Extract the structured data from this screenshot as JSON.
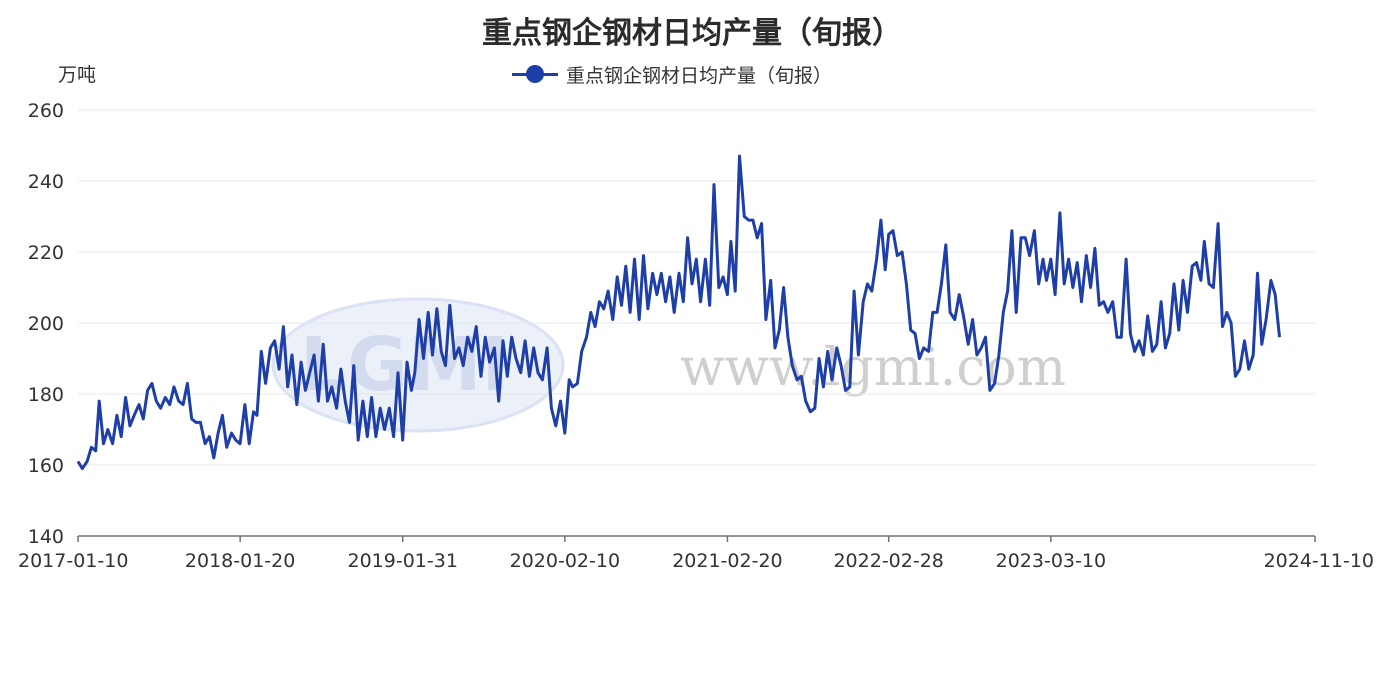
{
  "chart_data": {
    "type": "line",
    "title": "重点钢企钢材日均产量（旬报）",
    "ylabel": "万吨",
    "ylim": [
      140,
      260
    ],
    "yticks": [
      140,
      160,
      180,
      200,
      220,
      240,
      260
    ],
    "xticks": [
      "2017-01-10",
      "2018-01-20",
      "2019-01-31",
      "2020-02-10",
      "2021-02-20",
      "2022-02-28",
      "2023-03-10",
      "2024-11-10"
    ],
    "x_range": [
      "2017-01-10",
      "2024-11-10"
    ],
    "legend_position": "top-center",
    "grid": "horizontal",
    "series": [
      {
        "name": "重点钢企钢材日均产量（旬报）",
        "color": "#1f3fa8",
        "points": [
          [
            "2017-01-10",
            161
          ],
          [
            "2017-01-20",
            159
          ],
          [
            "2017-01-31",
            161
          ],
          [
            "2017-02-10",
            165
          ],
          [
            "2017-02-20",
            164
          ],
          [
            "2017-02-28",
            178
          ],
          [
            "2017-03-10",
            166
          ],
          [
            "2017-03-20",
            170
          ],
          [
            "2017-03-31",
            166
          ],
          [
            "2017-04-10",
            174
          ],
          [
            "2017-04-20",
            168
          ],
          [
            "2017-04-30",
            179
          ],
          [
            "2017-05-10",
            171
          ],
          [
            "2017-05-20",
            174
          ],
          [
            "2017-05-31",
            177
          ],
          [
            "2017-06-10",
            173
          ],
          [
            "2017-06-20",
            181
          ],
          [
            "2017-06-30",
            183
          ],
          [
            "2017-07-10",
            178
          ],
          [
            "2017-07-20",
            176
          ],
          [
            "2017-07-31",
            179
          ],
          [
            "2017-08-10",
            177
          ],
          [
            "2017-08-20",
            182
          ],
          [
            "2017-08-31",
            178
          ],
          [
            "2017-09-10",
            177
          ],
          [
            "2017-09-20",
            183
          ],
          [
            "2017-09-30",
            173
          ],
          [
            "2017-10-10",
            172
          ],
          [
            "2017-10-20",
            172
          ],
          [
            "2017-10-31",
            166
          ],
          [
            "2017-11-10",
            168
          ],
          [
            "2017-11-20",
            162
          ],
          [
            "2017-11-30",
            169
          ],
          [
            "2017-12-10",
            174
          ],
          [
            "2017-12-20",
            165
          ],
          [
            "2017-12-31",
            169
          ],
          [
            "2018-01-10",
            167
          ],
          [
            "2018-01-20",
            166
          ],
          [
            "2018-01-31",
            177
          ],
          [
            "2018-02-10",
            166
          ],
          [
            "2018-02-20",
            175
          ],
          [
            "2018-02-28",
            174
          ],
          [
            "2018-03-10",
            192
          ],
          [
            "2018-03-20",
            183
          ],
          [
            "2018-03-31",
            193
          ],
          [
            "2018-04-10",
            195
          ],
          [
            "2018-04-20",
            187
          ],
          [
            "2018-04-30",
            199
          ],
          [
            "2018-05-10",
            182
          ],
          [
            "2018-05-20",
            191
          ],
          [
            "2018-05-31",
            177
          ],
          [
            "2018-06-10",
            189
          ],
          [
            "2018-06-20",
            181
          ],
          [
            "2018-06-30",
            186
          ],
          [
            "2018-07-10",
            191
          ],
          [
            "2018-07-20",
            178
          ],
          [
            "2018-07-31",
            194
          ],
          [
            "2018-08-10",
            178
          ],
          [
            "2018-08-20",
            182
          ],
          [
            "2018-08-31",
            176
          ],
          [
            "2018-09-10",
            187
          ],
          [
            "2018-09-20",
            178
          ],
          [
            "2018-09-30",
            172
          ],
          [
            "2018-10-10",
            188
          ],
          [
            "2018-10-20",
            167
          ],
          [
            "2018-10-31",
            178
          ],
          [
            "2018-11-10",
            168
          ],
          [
            "2018-11-20",
            179
          ],
          [
            "2018-11-30",
            168
          ],
          [
            "2018-12-10",
            176
          ],
          [
            "2018-12-20",
            170
          ],
          [
            "2018-12-31",
            176
          ],
          [
            "2019-01-10",
            168
          ],
          [
            "2019-01-20",
            186
          ],
          [
            "2019-01-31",
            167
          ],
          [
            "2019-02-10",
            189
          ],
          [
            "2019-02-20",
            181
          ],
          [
            "2019-02-28",
            186
          ],
          [
            "2019-03-10",
            201
          ],
          [
            "2019-03-20",
            190
          ],
          [
            "2019-03-31",
            203
          ],
          [
            "2019-04-10",
            191
          ],
          [
            "2019-04-20",
            204
          ],
          [
            "2019-04-30",
            192
          ],
          [
            "2019-05-10",
            188
          ],
          [
            "2019-05-20",
            205
          ],
          [
            "2019-05-31",
            190
          ],
          [
            "2019-06-10",
            193
          ],
          [
            "2019-06-20",
            188
          ],
          [
            "2019-06-30",
            196
          ],
          [
            "2019-07-10",
            192
          ],
          [
            "2019-07-20",
            199
          ],
          [
            "2019-07-31",
            185
          ],
          [
            "2019-08-10",
            196
          ],
          [
            "2019-08-20",
            189
          ],
          [
            "2019-08-31",
            193
          ],
          [
            "2019-09-10",
            178
          ],
          [
            "2019-09-20",
            195
          ],
          [
            "2019-09-30",
            185
          ],
          [
            "2019-10-10",
            196
          ],
          [
            "2019-10-20",
            190
          ],
          [
            "2019-10-31",
            186
          ],
          [
            "2019-11-10",
            195
          ],
          [
            "2019-11-20",
            185
          ],
          [
            "2019-11-30",
            193
          ],
          [
            "2019-12-10",
            186
          ],
          [
            "2019-12-20",
            184
          ],
          [
            "2019-12-31",
            193
          ],
          [
            "2020-01-10",
            176
          ],
          [
            "2020-01-20",
            171
          ],
          [
            "2020-01-31",
            178
          ],
          [
            "2020-02-10",
            169
          ],
          [
            "2020-02-20",
            184
          ],
          [
            "2020-02-28",
            182
          ],
          [
            "2020-03-10",
            183
          ],
          [
            "2020-03-20",
            192
          ],
          [
            "2020-03-31",
            196
          ],
          [
            "2020-04-10",
            203
          ],
          [
            "2020-04-20",
            199
          ],
          [
            "2020-04-30",
            206
          ],
          [
            "2020-05-10",
            204
          ],
          [
            "2020-05-20",
            209
          ],
          [
            "2020-05-31",
            201
          ],
          [
            "2020-06-10",
            213
          ],
          [
            "2020-06-20",
            205
          ],
          [
            "2020-06-30",
            216
          ],
          [
            "2020-07-10",
            203
          ],
          [
            "2020-07-20",
            218
          ],
          [
            "2020-07-31",
            201
          ],
          [
            "2020-08-10",
            219
          ],
          [
            "2020-08-20",
            204
          ],
          [
            "2020-08-31",
            214
          ],
          [
            "2020-09-10",
            208
          ],
          [
            "2020-09-20",
            214
          ],
          [
            "2020-09-30",
            206
          ],
          [
            "2020-10-10",
            213
          ],
          [
            "2020-10-20",
            203
          ],
          [
            "2020-10-31",
            214
          ],
          [
            "2020-11-10",
            206
          ],
          [
            "2020-11-20",
            224
          ],
          [
            "2020-11-30",
            211
          ],
          [
            "2020-12-10",
            218
          ],
          [
            "2020-12-20",
            206
          ],
          [
            "2020-12-31",
            218
          ],
          [
            "2021-01-10",
            205
          ],
          [
            "2021-01-20",
            239
          ],
          [
            "2021-01-31",
            210
          ],
          [
            "2021-02-10",
            213
          ],
          [
            "2021-02-20",
            208
          ],
          [
            "2021-02-28",
            223
          ],
          [
            "2021-03-10",
            209
          ],
          [
            "2021-03-20",
            247
          ],
          [
            "2021-03-31",
            230
          ],
          [
            "2021-04-10",
            229
          ],
          [
            "2021-04-20",
            229
          ],
          [
            "2021-04-30",
            224
          ],
          [
            "2021-05-10",
            228
          ],
          [
            "2021-05-20",
            201
          ],
          [
            "2021-05-31",
            212
          ],
          [
            "2021-06-10",
            193
          ],
          [
            "2021-06-20",
            198
          ],
          [
            "2021-06-30",
            210
          ],
          [
            "2021-07-10",
            196
          ],
          [
            "2021-07-20",
            188
          ],
          [
            "2021-07-31",
            184
          ],
          [
            "2021-08-10",
            185
          ],
          [
            "2021-08-20",
            178
          ],
          [
            "2021-08-31",
            175
          ],
          [
            "2021-09-10",
            176
          ],
          [
            "2021-09-20",
            190
          ],
          [
            "2021-09-30",
            182
          ],
          [
            "2021-10-10",
            192
          ],
          [
            "2021-10-20",
            184
          ],
          [
            "2021-10-31",
            193
          ],
          [
            "2021-11-10",
            188
          ],
          [
            "2021-11-20",
            181
          ],
          [
            "2021-11-30",
            182
          ],
          [
            "2021-12-10",
            209
          ],
          [
            "2021-12-20",
            191
          ],
          [
            "2021-12-31",
            206
          ],
          [
            "2022-01-10",
            211
          ],
          [
            "2022-01-20",
            209
          ],
          [
            "2022-01-31",
            218
          ],
          [
            "2022-02-10",
            229
          ],
          [
            "2022-02-20",
            215
          ],
          [
            "2022-02-28",
            225
          ],
          [
            "2022-03-10",
            226
          ],
          [
            "2022-03-20",
            219
          ],
          [
            "2022-03-31",
            220
          ],
          [
            "2022-04-10",
            211
          ],
          [
            "2022-04-20",
            198
          ],
          [
            "2022-04-30",
            197
          ],
          [
            "2022-05-10",
            190
          ],
          [
            "2022-05-20",
            193
          ],
          [
            "2022-05-31",
            192
          ],
          [
            "2022-06-10",
            203
          ],
          [
            "2022-06-20",
            203
          ],
          [
            "2022-06-30",
            211
          ],
          [
            "2022-07-10",
            222
          ],
          [
            "2022-07-20",
            203
          ],
          [
            "2022-07-31",
            201
          ],
          [
            "2022-08-10",
            208
          ],
          [
            "2022-08-20",
            202
          ],
          [
            "2022-08-31",
            194
          ],
          [
            "2022-09-10",
            201
          ],
          [
            "2022-09-20",
            191
          ],
          [
            "2022-09-30",
            193
          ],
          [
            "2022-10-10",
            196
          ],
          [
            "2022-10-20",
            181
          ],
          [
            "2022-10-31",
            183
          ],
          [
            "2022-11-10",
            191
          ],
          [
            "2022-11-20",
            203
          ],
          [
            "2022-11-30",
            209
          ],
          [
            "2022-12-10",
            226
          ],
          [
            "2022-12-20",
            203
          ],
          [
            "2022-12-31",
            224
          ],
          [
            "2023-01-10",
            224
          ],
          [
            "2023-01-20",
            219
          ],
          [
            "2023-01-31",
            226
          ],
          [
            "2023-02-10",
            211
          ],
          [
            "2023-02-20",
            218
          ],
          [
            "2023-02-28",
            212
          ],
          [
            "2023-03-10",
            218
          ],
          [
            "2023-03-20",
            208
          ],
          [
            "2023-03-31",
            231
          ],
          [
            "2023-04-10",
            211
          ],
          [
            "2023-04-20",
            218
          ],
          [
            "2023-04-30",
            210
          ],
          [
            "2023-05-10",
            217
          ],
          [
            "2023-05-20",
            206
          ],
          [
            "2023-05-31",
            219
          ],
          [
            "2023-06-10",
            210
          ],
          [
            "2023-06-20",
            221
          ],
          [
            "2023-06-30",
            205
          ],
          [
            "2023-07-10",
            206
          ],
          [
            "2023-07-20",
            203
          ],
          [
            "2023-07-31",
            206
          ],
          [
            "2023-08-10",
            196
          ],
          [
            "2023-08-20",
            196
          ],
          [
            "2023-08-31",
            218
          ],
          [
            "2023-09-10",
            197
          ],
          [
            "2023-09-20",
            192
          ],
          [
            "2023-09-30",
            195
          ],
          [
            "2023-10-10",
            191
          ],
          [
            "2023-10-20",
            202
          ],
          [
            "2023-10-31",
            192
          ],
          [
            "2023-11-10",
            194
          ],
          [
            "2023-11-20",
            206
          ],
          [
            "2023-11-30",
            193
          ],
          [
            "2023-12-10",
            197
          ],
          [
            "2023-12-20",
            211
          ],
          [
            "2023-12-31",
            198
          ],
          [
            "2024-01-10",
            212
          ],
          [
            "2024-01-20",
            203
          ],
          [
            "2024-01-31",
            216
          ],
          [
            "2024-02-10",
            217
          ],
          [
            "2024-02-20",
            212
          ],
          [
            "2024-02-28",
            223
          ],
          [
            "2024-03-10",
            211
          ],
          [
            "2024-03-20",
            210
          ],
          [
            "2024-03-31",
            228
          ],
          [
            "2024-04-10",
            199
          ],
          [
            "2024-04-20",
            203
          ],
          [
            "2024-04-30",
            200
          ],
          [
            "2024-05-10",
            185
          ],
          [
            "2024-05-20",
            187
          ],
          [
            "2024-05-31",
            195
          ],
          [
            "2024-06-10",
            187
          ],
          [
            "2024-06-20",
            191
          ],
          [
            "2024-06-30",
            214
          ],
          [
            "2024-07-10",
            194
          ],
          [
            "2024-07-20",
            201
          ],
          [
            "2024-07-31",
            212
          ],
          [
            "2024-08-10",
            208
          ],
          [
            "2024-08-20",
            196
          ]
        ]
      }
    ]
  },
  "watermark": {
    "logo": "LGMI",
    "text": "www.lgmi.com"
  }
}
